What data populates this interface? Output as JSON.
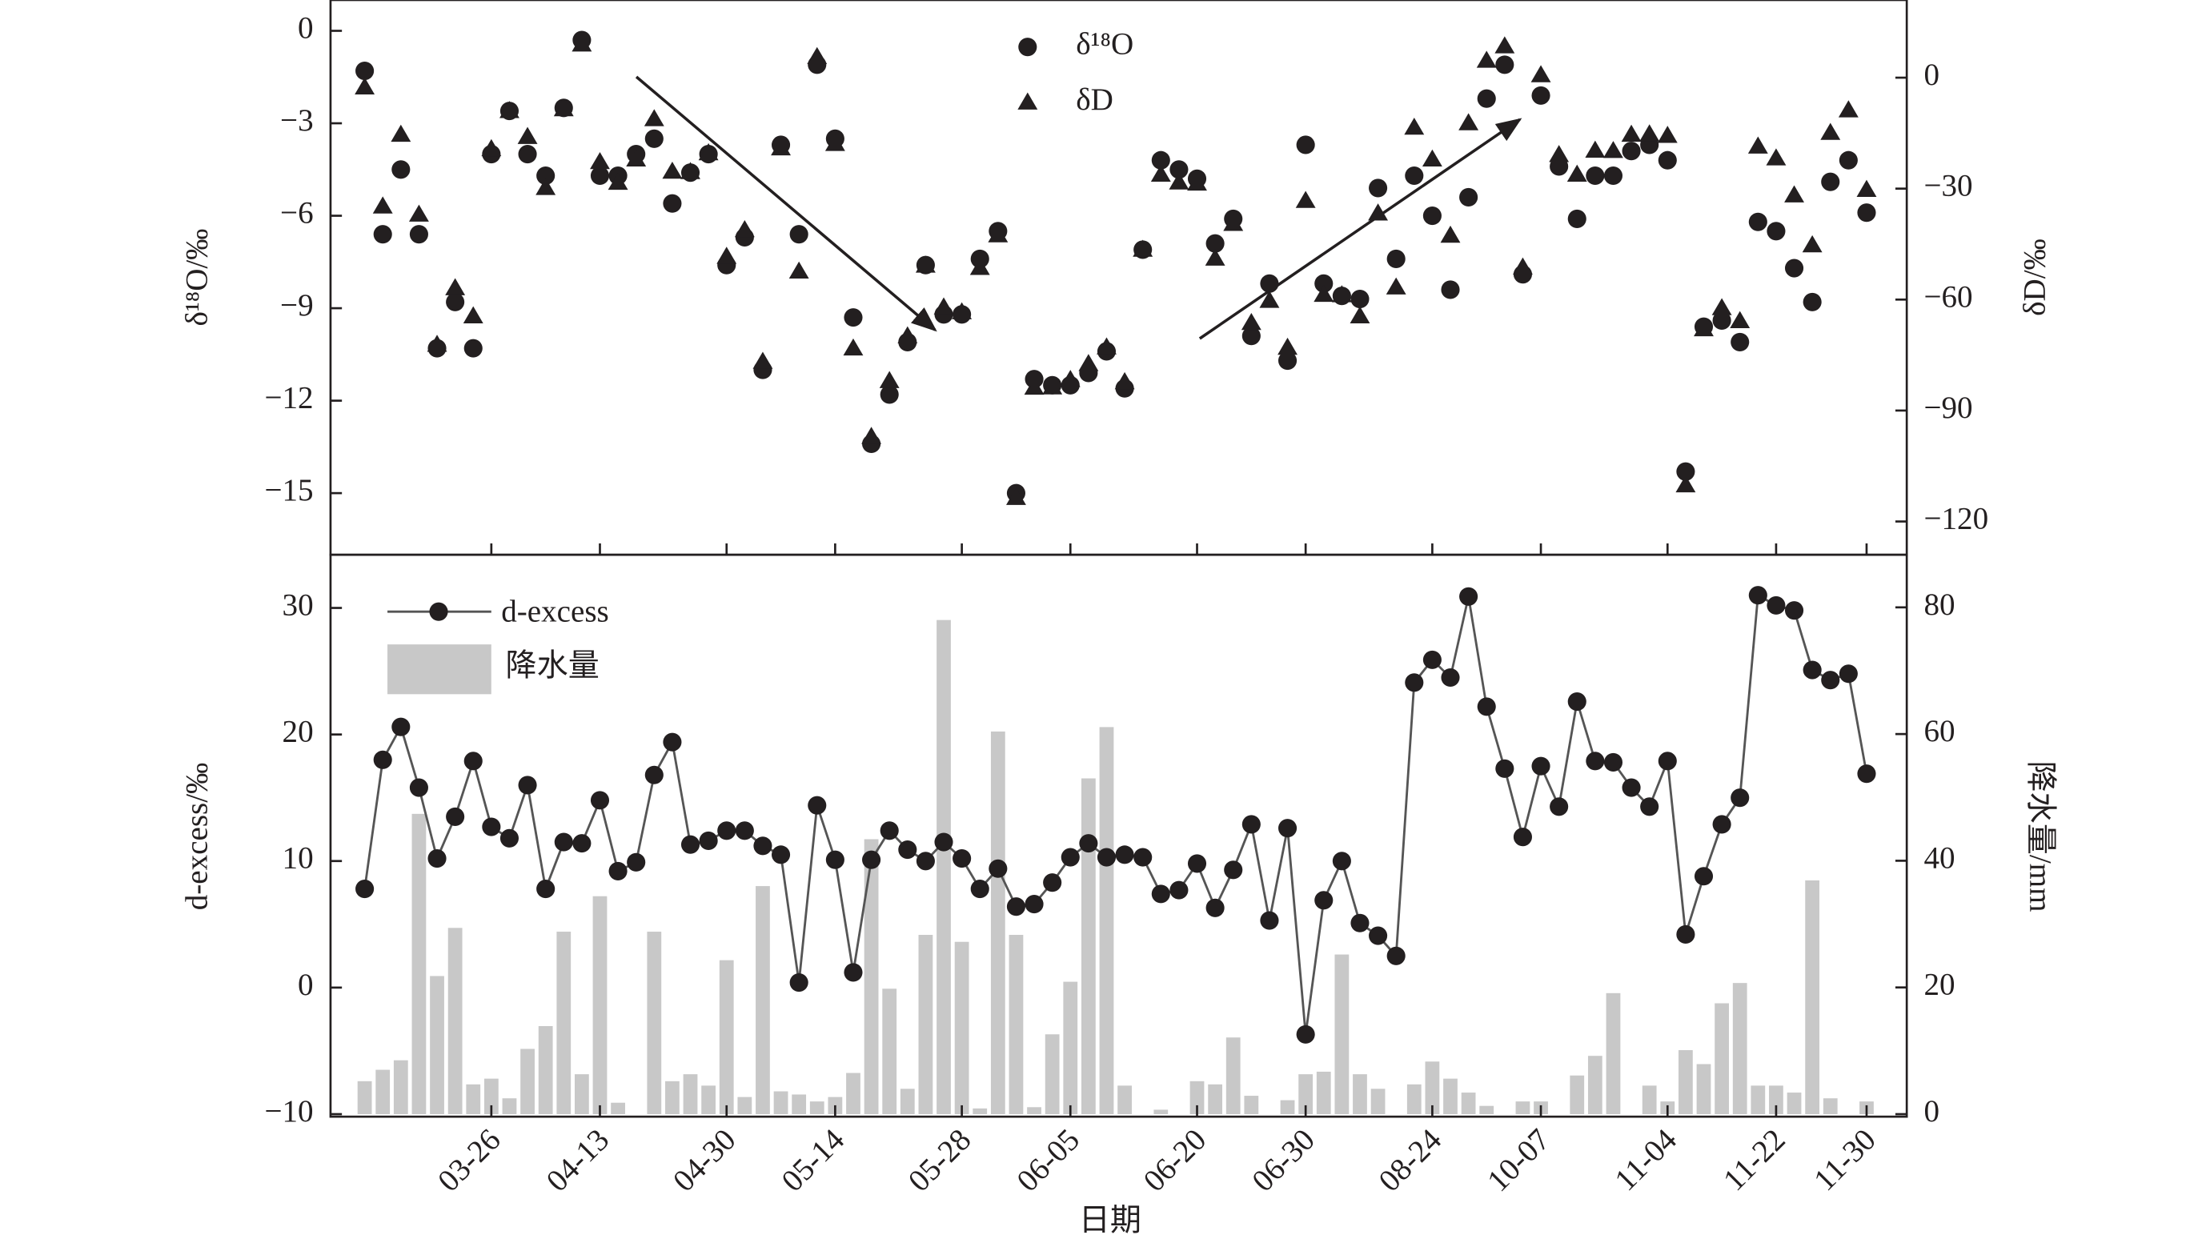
{
  "chart_data": [
    {
      "type": "scatter",
      "ylabel": "δ¹⁸O/‰",
      "y2label": "δD/‰",
      "ylim": [
        -17,
        1
      ],
      "yticks": [
        {
          "value": 0,
          "label": "0"
        },
        {
          "value": -3,
          "label": "−3"
        },
        {
          "value": -6,
          "label": "−6"
        },
        {
          "value": -9,
          "label": "−9"
        },
        {
          "value": -12,
          "label": "−12"
        },
        {
          "value": -15,
          "label": "−15"
        }
      ],
      "y2lim": [
        -129,
        21
      ],
      "y2ticks": [
        {
          "value": 0,
          "label": "0"
        },
        {
          "value": -30,
          "label": "−30"
        },
        {
          "value": -60,
          "label": "−60"
        },
        {
          "value": -90,
          "label": "−90"
        },
        {
          "value": -120,
          "label": "−120"
        }
      ],
      "series": [
        {
          "name": "δ¹⁸O",
          "color": "#231f20",
          "marker": "circle",
          "values": [
            -1.3,
            -6.6,
            -4.5,
            -6.6,
            -10.3,
            -8.8,
            -10.3,
            -4.0,
            -2.6,
            -4.0,
            -4.7,
            -2.5,
            -0.3,
            -4.7,
            -4.7,
            -4.0,
            -3.5,
            -5.6,
            -4.6,
            -4.0,
            -7.6,
            -6.7,
            -11.0,
            -3.7,
            -6.6,
            -1.1,
            -3.5,
            -9.3,
            -13.4,
            -11.8,
            -10.1,
            -7.6,
            -9.2,
            -9.2,
            -7.4,
            -6.5,
            -15.0,
            -11.3,
            -11.5,
            -11.5,
            -11.1,
            -10.4,
            -11.6,
            -7.1,
            -4.2,
            -4.5,
            -4.8,
            -6.9,
            -6.1,
            -9.9,
            -8.2,
            -10.7,
            -3.7,
            -8.2,
            -8.6,
            -8.7,
            -5.1,
            -7.4,
            -4.7,
            -6.0,
            -8.4,
            -5.4,
            -2.2,
            -1.1,
            -7.9,
            -2.1,
            -4.4,
            -6.1,
            -4.7,
            -4.7,
            -3.9,
            -3.7,
            -4.2,
            -14.3,
            -9.6,
            -9.4,
            -10.1,
            -6.2,
            -6.5,
            -7.7,
            -8.8,
            -4.9,
            -4.2,
            -5.9
          ]
        },
        {
          "name": "δD",
          "color": "#231f20",
          "marker": "triangle",
          "axis": "y2",
          "values": [
            -2.6,
            -34.8,
            -15.4,
            -37,
            -72.2,
            -56.9,
            -64.5,
            -19.3,
            -9,
            -16,
            -29.8,
            -8.5,
            9,
            -22.8,
            -28.4,
            -22.1,
            -11.2,
            -25.4,
            -25.5,
            -20.4,
            -48.4,
            -41.2,
            -76.8,
            -19.1,
            -52.4,
            5.6,
            -17.9,
            -73.2,
            -97.1,
            -82,
            -69.9,
            -50.8,
            -62.1,
            -63.4,
            -51.4,
            -42.6,
            -113.6,
            -83.8,
            -83.7,
            -81.7,
            -77.4,
            -72.9,
            -82.3,
            -46.5,
            -26.2,
            -28.3,
            -28.6,
            -48.9,
            -39.5,
            -66.3,
            -60.3,
            -73,
            -33.3,
            -58.7,
            -58.8,
            -64.5,
            -36.7,
            -56.7,
            -13.5,
            -22.1,
            -42.7,
            -12.3,
            4.6,
            8.5,
            -51.3,
            0.7,
            -20.9,
            -26.2,
            -19.7,
            -19.8,
            -15.4,
            -15.3,
            -15.7,
            -110.2,
            -68,
            -62.3,
            -65.8,
            -18.6,
            -21.8,
            -31.8,
            -45.3,
            -14.9,
            -8.8,
            -30.3
          ]
        }
      ]
    },
    {
      "type": "bar_line",
      "xlabel": "日期",
      "ylabel": "d-excess/‰",
      "y2label": "降水量/mm",
      "categories": [
        null,
        null,
        null,
        null,
        null,
        null,
        null,
        "03-26",
        null,
        null,
        null,
        null,
        null,
        "04-13",
        null,
        null,
        null,
        null,
        null,
        null,
        "04-30",
        null,
        null,
        null,
        null,
        null,
        "05-14",
        null,
        null,
        null,
        null,
        null,
        null,
        "05-28",
        null,
        null,
        null,
        null,
        null,
        "06-05",
        null,
        null,
        null,
        null,
        null,
        null,
        "06-20",
        null,
        null,
        null,
        null,
        null,
        "06-30",
        null,
        null,
        null,
        null,
        null,
        null,
        "08-24",
        null,
        null,
        null,
        null,
        null,
        "10-07",
        null,
        null,
        null,
        null,
        null,
        null,
        "11-04",
        null,
        null,
        null,
        null,
        null,
        "11-22",
        null,
        null,
        null,
        null,
        "11-30"
      ],
      "ylim": [
        -10.2,
        34.2
      ],
      "yticks": [
        {
          "value": 30,
          "label": "30"
        },
        {
          "value": 20,
          "label": "20"
        },
        {
          "value": 10,
          "label": "10"
        },
        {
          "value": 0,
          "label": "0"
        },
        {
          "value": -10,
          "label": "−10"
        }
      ],
      "y2lim": [
        -0.4,
        88.3
      ],
      "y2ticks": [
        0,
        20,
        40,
        60,
        80
      ],
      "series": [
        {
          "name": "d-excess",
          "kind": "line",
          "color": "#231f20",
          "values": [
            7.8,
            18,
            20.6,
            15.8,
            10.2,
            13.5,
            17.9,
            12.7,
            11.8,
            16,
            7.8,
            11.5,
            11.4,
            14.8,
            9.2,
            9.9,
            16.8,
            19.4,
            11.3,
            11.6,
            12.4,
            12.4,
            11.2,
            10.5,
            0.4,
            14.4,
            10.1,
            1.2,
            10.1,
            12.4,
            10.9,
            10,
            11.5,
            10.2,
            7.8,
            9.4,
            6.4,
            6.6,
            8.3,
            10.3,
            11.4,
            10.3,
            10.5,
            10.3,
            7.4,
            7.7,
            9.8,
            6.3,
            9.3,
            12.9,
            5.3,
            12.6,
            -3.7,
            6.9,
            10,
            5.1,
            4.1,
            2.5,
            24.1,
            25.9,
            24.5,
            30.9,
            22.2,
            17.3,
            11.9,
            17.5,
            14.3,
            22.6,
            17.9,
            17.8,
            15.8,
            14.3,
            17.9,
            4.2,
            8.8,
            12.9,
            15,
            31,
            30.2,
            29.8,
            25.1,
            24.3,
            24.8,
            16.9
          ]
        },
        {
          "name": "降水量",
          "kind": "bar",
          "axis": "y2",
          "color": "#c8c8c8",
          "values": [
            5.2,
            7,
            8.5,
            47.4,
            21.8,
            29.4,
            4.7,
            5.6,
            2.5,
            10.3,
            13.9,
            28.8,
            6.3,
            34.4,
            1.8,
            0,
            28.8,
            5.2,
            6.3,
            4.5,
            24.3,
            2.7,
            36,
            3.6,
            3.1,
            2,
            2.7,
            6.5,
            43.4,
            19.8,
            4,
            28.3,
            78,
            27.2,
            0.9,
            60.4,
            28.3,
            1.1,
            12.6,
            20.9,
            53,
            61.1,
            4.5,
            0,
            0.7,
            0,
            5.2,
            4.7,
            12.1,
            2.9,
            0,
            2.2,
            6.3,
            6.7,
            25.2,
            6.3,
            4,
            0,
            4.7,
            8.3,
            5.6,
            3.4,
            1.3,
            0,
            2,
            2,
            0,
            6.1,
            9.2,
            19.1,
            0,
            4.5,
            2,
            10.1,
            7.9,
            17.5,
            20.7,
            4.5,
            4.5,
            3.4,
            36.9,
            2.5,
            0,
            2
          ]
        }
      ]
    }
  ]
}
